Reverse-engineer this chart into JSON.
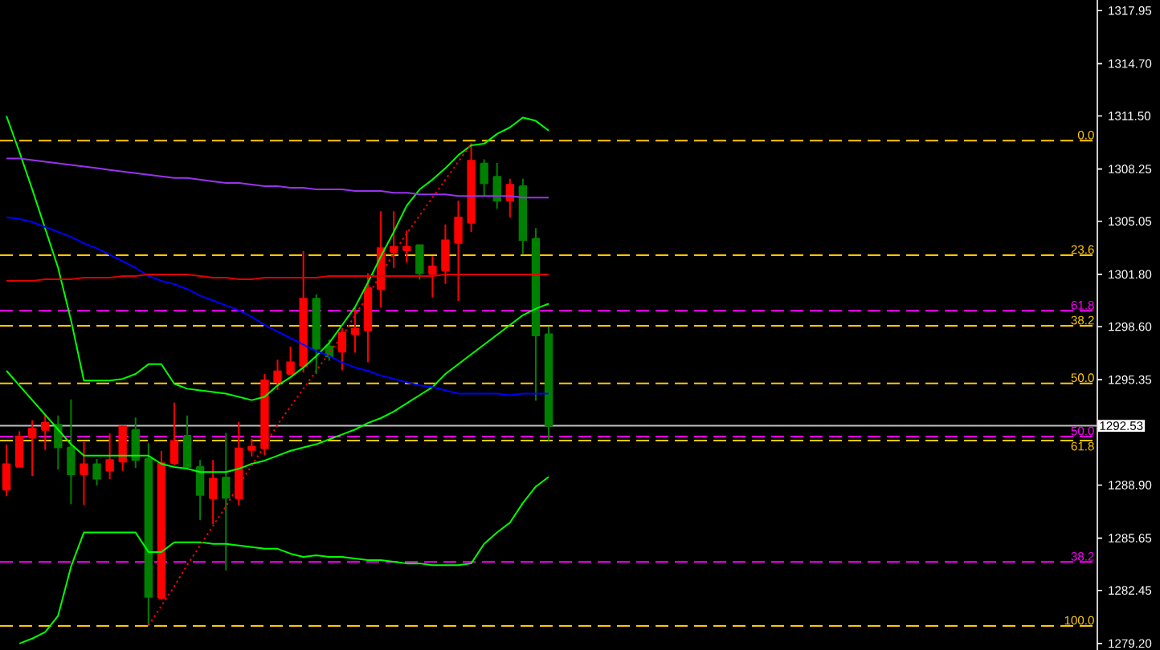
{
  "chart_data": {
    "type": "candlestick",
    "categories": [
      null,
      null,
      null,
      null,
      null,
      null,
      null,
      null,
      null,
      null,
      null,
      null,
      null,
      null,
      null,
      null,
      null,
      null,
      null,
      null,
      null,
      null,
      null,
      null,
      null,
      null,
      null,
      null,
      null,
      null,
      null,
      null,
      null,
      null,
      null,
      null,
      null,
      null,
      null,
      null,
      null,
      null,
      null,
      null,
      null,
      null,
      null,
      null,
      null,
      null,
      null,
      null,
      null,
      null,
      null,
      null,
      null,
      null,
      null,
      null,
      null,
      null,
      null,
      null,
      null,
      null,
      null,
      null,
      null,
      null,
      null,
      null,
      null,
      null,
      null,
      null,
      null,
      null,
      null,
      null,
      null,
      null,
      null,
      null,
      null
    ],
    "ohlc": [
      [
        1288.61,
        1291.38,
        1288.22,
        1290.17
      ],
      [
        1290.01,
        1292.19,
        1290.0,
        1291.87
      ],
      [
        1291.8,
        1292.87,
        1289.46,
        1292.35
      ],
      [
        1292.28,
        1293.26,
        1291.05,
        1292.7
      ],
      [
        1292.6,
        1293.16,
        1289.85,
        1291.21
      ],
      [
        1291.21,
        1294.14,
        1287.73,
        1289.56
      ],
      [
        1289.56,
        1291.53,
        1287.67,
        1290.17
      ],
      [
        1290.17,
        1290.5,
        1288.87,
        1289.29
      ],
      [
        1289.78,
        1292.06,
        1289.26,
        1290.43
      ],
      [
        1290.33,
        1292.55,
        1289.78,
        1292.48
      ],
      [
        1292.28,
        1293.04,
        1289.95,
        1290.43
      ],
      [
        1290.5,
        1291.48,
        1280.27,
        1282.05
      ],
      [
        1281.98,
        1290.99,
        1281.88,
        1290.24
      ],
      [
        1290.24,
        1293.94,
        1290.11,
        1291.6
      ],
      [
        1291.92,
        1293.16,
        1289.85,
        1290.01
      ],
      [
        1290.01,
        1290.43,
        1286.76,
        1288.29
      ],
      [
        1288.09,
        1290.43,
        1286.5,
        1289.29
      ],
      [
        1289.36,
        1292.09,
        1283.68,
        1288.12
      ],
      [
        1288.09,
        1292.77,
        1287.67,
        1291.14
      ],
      [
        1291.05,
        1291.73,
        1290.66,
        1291.24
      ],
      [
        1291.14,
        1295.7,
        1290.72,
        1295.31
      ],
      [
        1295.21,
        1296.57,
        1294.72,
        1295.86
      ],
      [
        1295.7,
        1297.38,
        1295.7,
        1296.41
      ],
      [
        1296.18,
        1303.23,
        1295.79,
        1300.31
      ],
      [
        1300.31,
        1300.57,
        1295.7,
        1297.25
      ],
      [
        1297.38,
        1297.81,
        1296.51,
        1296.77
      ],
      [
        1297.06,
        1298.52,
        1295.92,
        1298.23
      ],
      [
        1298.13,
        1299.76,
        1297.0,
        1298.45
      ],
      [
        1298.36,
        1301.87,
        1296.41,
        1300.96
      ],
      [
        1300.89,
        1305.67,
        1299.76,
        1303.4
      ],
      [
        1303.17,
        1305.67,
        1302.2,
        1303.49
      ],
      [
        1303.27,
        1304.47,
        1302.52,
        1303.49
      ],
      [
        1303.59,
        1303.59,
        1301.48,
        1301.87
      ],
      [
        1301.81,
        1302.91,
        1300.4,
        1302.29
      ],
      [
        1302.03,
        1304.86,
        1301.22,
        1303.88
      ],
      [
        1303.72,
        1306.32,
        1300.18,
        1305.28
      ],
      [
        1304.95,
        1309.83,
        1304.4,
        1308.76
      ],
      [
        1308.59,
        1308.85,
        1306.58,
        1307.39
      ],
      [
        1307.78,
        1308.63,
        1305.83,
        1306.32
      ],
      [
        1306.32,
        1307.65,
        1305.28,
        1307.29
      ],
      [
        1307.2,
        1307.65,
        1303.01,
        1303.91
      ],
      [
        1303.98,
        1304.63,
        1294.07,
        1298.06
      ],
      [
        1298.13,
        1298.62,
        1291.63,
        1292.53
      ],
      null,
      null,
      null,
      null,
      null,
      null,
      null,
      null,
      null,
      null,
      null,
      null,
      null,
      null,
      null,
      null,
      null,
      null,
      null,
      null,
      null,
      null,
      null,
      null,
      null,
      null,
      null,
      null,
      null,
      null,
      null,
      null,
      null,
      null,
      null,
      null,
      null,
      null,
      null,
      null,
      null,
      null
    ],
    "colors": [
      "#ff0000",
      "#ff0000",
      "#ff0000",
      "#ff0000",
      "#008000",
      "#008000",
      "#ff0000",
      "#008000",
      "#ff0000",
      "#ff0000",
      "#008000",
      "#008000",
      "#ff0000",
      "#ff0000",
      "#008000",
      "#008000",
      "#ff0000",
      "#008000",
      "#ff0000",
      "#ff0000",
      "#ff0000",
      "#ff0000",
      "#ff0000",
      "#ff0000",
      "#008000",
      "#008000",
      "#ff0000",
      "#ff0000",
      "#ff0000",
      "#ff0000",
      "#ff0000",
      "#ff0000",
      "#008000",
      "#ff0000",
      "#ff0000",
      "#ff0000",
      "#ff0000",
      "#008000",
      "#008000",
      "#ff0000",
      "#008000",
      "#008000",
      "#008000",
      null,
      null,
      null,
      null,
      null,
      null,
      null,
      null,
      null,
      null,
      null,
      null,
      null,
      null,
      null,
      null,
      null,
      null,
      null,
      null,
      null,
      null,
      null,
      null,
      null,
      null,
      null,
      null,
      null,
      null,
      null,
      null,
      null,
      null,
      null,
      null,
      null,
      null,
      null,
      null,
      null,
      null
    ],
    "series": [
      {
        "type": "line",
        "color": "#00ff00",
        "line_style": "solid",
        "values": [
          1311.5,
          1309.3,
          1307.0,
          1304.6,
          1302.2,
          1299.0,
          1295.3,
          1295.3,
          1295.3,
          1295.4,
          1295.7,
          1296.3,
          1296.3,
          1295.1,
          1294.8,
          1294.7,
          1294.6,
          1294.5,
          1294.3,
          1294.1,
          1294.3,
          1295.0,
          1295.5,
          1296.1,
          1296.8,
          1297.6,
          1298.7,
          1299.8,
          1301.3,
          1302.9,
          1304.4,
          1306.0,
          1307.0,
          1307.6,
          1308.3,
          1309.1,
          1309.7,
          1309.8,
          1310.4,
          1310.8,
          1311.4,
          1311.2,
          1310.6,
          null,
          null,
          null,
          null,
          null,
          null,
          null,
          null,
          null,
          null,
          null,
          null,
          null,
          null,
          null,
          null,
          null,
          null,
          null,
          null,
          null,
          null,
          null,
          null,
          null,
          null,
          null,
          null,
          null,
          null,
          null,
          null,
          null,
          null,
          null,
          null,
          null,
          null,
          null,
          null,
          null,
          null
        ]
      },
      {
        "type": "line",
        "color": "#00ff00",
        "line_style": "solid",
        "values": [
          1295.9,
          1295.0,
          1294.1,
          1293.2,
          1292.3,
          1291.4,
          1290.7,
          1290.7,
          1290.7,
          1290.7,
          1290.7,
          1290.7,
          1290.2,
          1290.0,
          1289.9,
          1289.7,
          1289.7,
          1289.7,
          1289.9,
          1290.2,
          1290.4,
          1290.7,
          1291.0,
          1291.2,
          1291.4,
          1291.7,
          1292.0,
          1292.3,
          1292.7,
          1293.0,
          1293.4,
          1293.9,
          1294.4,
          1294.9,
          1295.7,
          1296.3,
          1296.9,
          1297.5,
          1298.1,
          1298.7,
          1299.3,
          1299.7,
          1300.0,
          null,
          null,
          null,
          null,
          null,
          null,
          null,
          null,
          null,
          null,
          null,
          null,
          null,
          null,
          null,
          null,
          null,
          null,
          null,
          null,
          null,
          null,
          null,
          null,
          null,
          null,
          null,
          null,
          null,
          null,
          null,
          null,
          null,
          null,
          null,
          null,
          null,
          null,
          null,
          null,
          null,
          null
        ]
      },
      {
        "type": "line",
        "color": "#00ff00",
        "line_style": "solid",
        "values": [
          null,
          1279.2,
          1279.5,
          1279.9,
          1280.9,
          1283.9,
          1286.0,
          1286.0,
          1286.0,
          1286.0,
          1286.0,
          1284.8,
          1284.8,
          1285.4,
          1285.4,
          1285.4,
          1285.3,
          1285.3,
          1285.2,
          1285.1,
          1285.0,
          1285.0,
          1284.7,
          1284.5,
          1284.6,
          1284.5,
          1284.5,
          1284.4,
          1284.3,
          1284.3,
          1284.2,
          1284.1,
          1284.1,
          1284.0,
          1284.0,
          1284.0,
          1284.1,
          1285.3,
          1286.0,
          1286.6,
          1287.8,
          1288.8,
          1289.4,
          null,
          null,
          null,
          null,
          null,
          null,
          null,
          null,
          null,
          null,
          null,
          null,
          null,
          null,
          null,
          null,
          null,
          null,
          null,
          null,
          null,
          null,
          null,
          null,
          null,
          null,
          null,
          null,
          null,
          null,
          null,
          null,
          null,
          null,
          null,
          null,
          null,
          null,
          null,
          null,
          null,
          null
        ]
      },
      {
        "type": "line",
        "color": "#9933ee",
        "line_style": "solid",
        "values": [
          1308.9,
          1308.9,
          1308.8,
          1308.7,
          1308.6,
          1308.5,
          1308.4,
          1308.3,
          1308.2,
          1308.1,
          1308.0,
          1307.9,
          1307.8,
          1307.7,
          1307.7,
          1307.6,
          1307.5,
          1307.4,
          1307.4,
          1307.3,
          1307.2,
          1307.2,
          1307.1,
          1307.1,
          1307.0,
          1307.0,
          1307.0,
          1306.9,
          1306.9,
          1306.9,
          1306.8,
          1306.8,
          1306.7,
          1306.7,
          1306.7,
          1306.6,
          1306.6,
          1306.6,
          1306.6,
          1306.6,
          1306.5,
          1306.5,
          1306.5,
          null,
          null,
          null,
          null,
          null,
          null,
          null,
          null,
          null,
          null,
          null,
          null,
          null,
          null,
          null,
          null,
          null,
          null,
          null,
          null,
          null,
          null,
          null,
          null,
          null,
          null,
          null,
          null,
          null,
          null,
          null,
          null,
          null,
          null,
          null,
          null,
          null,
          null,
          null,
          null,
          null,
          null
        ]
      },
      {
        "type": "line",
        "color": "#0000ff",
        "line_style": "solid",
        "values": [
          1305.3,
          1305.2,
          1305.0,
          1304.7,
          1304.4,
          1304.1,
          1303.7,
          1303.4,
          1303.0,
          1302.6,
          1302.2,
          1301.7,
          1301.4,
          1301.2,
          1300.9,
          1300.5,
          1300.2,
          1299.9,
          1299.6,
          1299.2,
          1298.7,
          1298.3,
          1297.9,
          1297.5,
          1297.1,
          1296.8,
          1296.4,
          1296.1,
          1295.9,
          1295.6,
          1295.4,
          1295.2,
          1295.0,
          1294.9,
          1294.7,
          1294.5,
          1294.5,
          1294.5,
          1294.5,
          1294.4,
          1294.5,
          1294.5,
          1294.5,
          null,
          null,
          null,
          null,
          null,
          null,
          null,
          null,
          null,
          null,
          null,
          null,
          null,
          null,
          null,
          null,
          null,
          null,
          null,
          null,
          null,
          null,
          null,
          null,
          null,
          null,
          null,
          null,
          null,
          null,
          null,
          null,
          null,
          null,
          null,
          null,
          null,
          null,
          null,
          null,
          null,
          null
        ]
      },
      {
        "type": "line",
        "color": "#e00000",
        "line_style": "solid",
        "values": [
          1301.4,
          1301.4,
          1301.4,
          1301.5,
          1301.5,
          1301.5,
          1301.6,
          1301.6,
          1301.6,
          1301.7,
          1301.7,
          1301.8,
          1301.8,
          1301.8,
          1301.8,
          1301.7,
          1301.6,
          1301.6,
          1301.5,
          1301.5,
          1301.6,
          1301.6,
          1301.6,
          1301.6,
          1301.6,
          1301.7,
          1301.7,
          1301.7,
          1301.7,
          1301.7,
          1301.7,
          1301.7,
          1301.7,
          1301.7,
          1301.8,
          1301.8,
          1301.8,
          1301.8,
          1301.8,
          1301.8,
          1301.8,
          1301.8,
          1301.8,
          null,
          null,
          null,
          null,
          null,
          null,
          null,
          null,
          null,
          null,
          null,
          null,
          null,
          null,
          null,
          null,
          null,
          null,
          null,
          null,
          null,
          null,
          null,
          null,
          null,
          null,
          null,
          null,
          null,
          null,
          null,
          null,
          null,
          null,
          null,
          null,
          null,
          null,
          null,
          null,
          null,
          null
        ]
      },
      {
        "type": "line",
        "color": "#ff0000",
        "line_style": "dotted",
        "values": [
          null,
          null,
          null,
          null,
          null,
          null,
          null,
          null,
          null,
          null,
          null,
          1280.3,
          1281.5,
          1282.7,
          1284.0,
          1285.2,
          1286.4,
          1287.6,
          1288.9,
          1290.1,
          1291.3,
          1292.6,
          1293.7,
          1294.8,
          1295.9,
          1297.0,
          1298.0,
          1299.3,
          1300.5,
          1301.8,
          1303.1,
          1304.3,
          1305.4,
          1306.5,
          1307.6,
          1308.7,
          1309.8,
          null,
          null,
          null,
          null,
          null,
          null,
          null,
          null,
          null,
          null,
          null,
          null,
          null,
          null,
          null,
          null,
          null,
          null,
          null,
          null,
          null,
          null,
          null,
          null,
          null,
          null,
          null,
          null,
          null,
          null,
          null,
          null,
          null,
          null,
          null,
          null,
          null,
          null,
          null,
          null,
          null,
          null,
          null,
          null,
          null,
          null,
          null,
          null
        ]
      }
    ],
    "ref_lines": [
      {
        "axis": "y",
        "value": 1309.99,
        "color": "#ffc800",
        "line_style": "dashed"
      },
      {
        "axis": "y",
        "value": 1302.98,
        "color": "#ffc800",
        "line_style": "dashed"
      },
      {
        "axis": "y",
        "value": 1299.57,
        "color": "#ff00ff",
        "line_style": "dashed"
      },
      {
        "axis": "y",
        "value": 1298.65,
        "color": "#ffc800",
        "line_style": "dashed"
      },
      {
        "axis": "y",
        "value": 1295.13,
        "color": "#ffc800",
        "line_style": "dashed"
      },
      {
        "axis": "y",
        "value": 1292.53,
        "label": "1292.53",
        "color": "#c0c0c0",
        "line_style": "solid"
      },
      {
        "axis": "y",
        "value": 1291.87,
        "color": "#ff00ff",
        "line_style": "dashed"
      },
      {
        "axis": "y",
        "value": 1291.62,
        "color": "#ffc800",
        "line_style": "dashed"
      },
      {
        "axis": "y",
        "value": 1284.19,
        "color": "#ff00ff",
        "line_style": "dashed"
      },
      {
        "axis": "y",
        "value": 1280.27,
        "color": "#ffc800",
        "line_style": "dashed"
      }
    ],
    "annotations": [
      {
        "text": "0.0",
        "y": 1309.99
      },
      {
        "text": "23.6",
        "y": 1302.98
      },
      {
        "text": "61.8",
        "y": 1299.57
      },
      {
        "text": "38.2",
        "y": 1298.65
      },
      {
        "text": "50.0",
        "y": 1295.13
      },
      {
        "text": "50.0",
        "y": 1291.87
      },
      {
        "text": "61.8",
        "y": 1291.62
      },
      {
        "text": "38.2",
        "y": 1284.19
      },
      {
        "text": "100.0",
        "y": 1280.27
      }
    ],
    "ylim": [
      1278.8,
      1318.6
    ],
    "yticks": [
      {
        "value": 1317.95,
        "label": "1317.95"
      },
      {
        "value": 1314.7,
        "label": "1314.70"
      },
      {
        "value": 1311.5,
        "label": "1311.50"
      },
      {
        "value": 1308.25,
        "label": "1308.25"
      },
      {
        "value": 1305.05,
        "label": "1305.05"
      },
      {
        "value": 1301.8,
        "label": "1301.80"
      },
      {
        "value": 1298.6,
        "label": "1298.60"
      },
      {
        "value": 1295.35,
        "label": "1295.35"
      },
      {
        "value": 1288.9,
        "label": "1288.90"
      },
      {
        "value": 1285.65,
        "label": "1285.65"
      },
      {
        "value": 1282.45,
        "label": "1282.45"
      },
      {
        "value": 1279.2,
        "label": "1279.20"
      }
    ],
    "tick_labels": "y"
  }
}
